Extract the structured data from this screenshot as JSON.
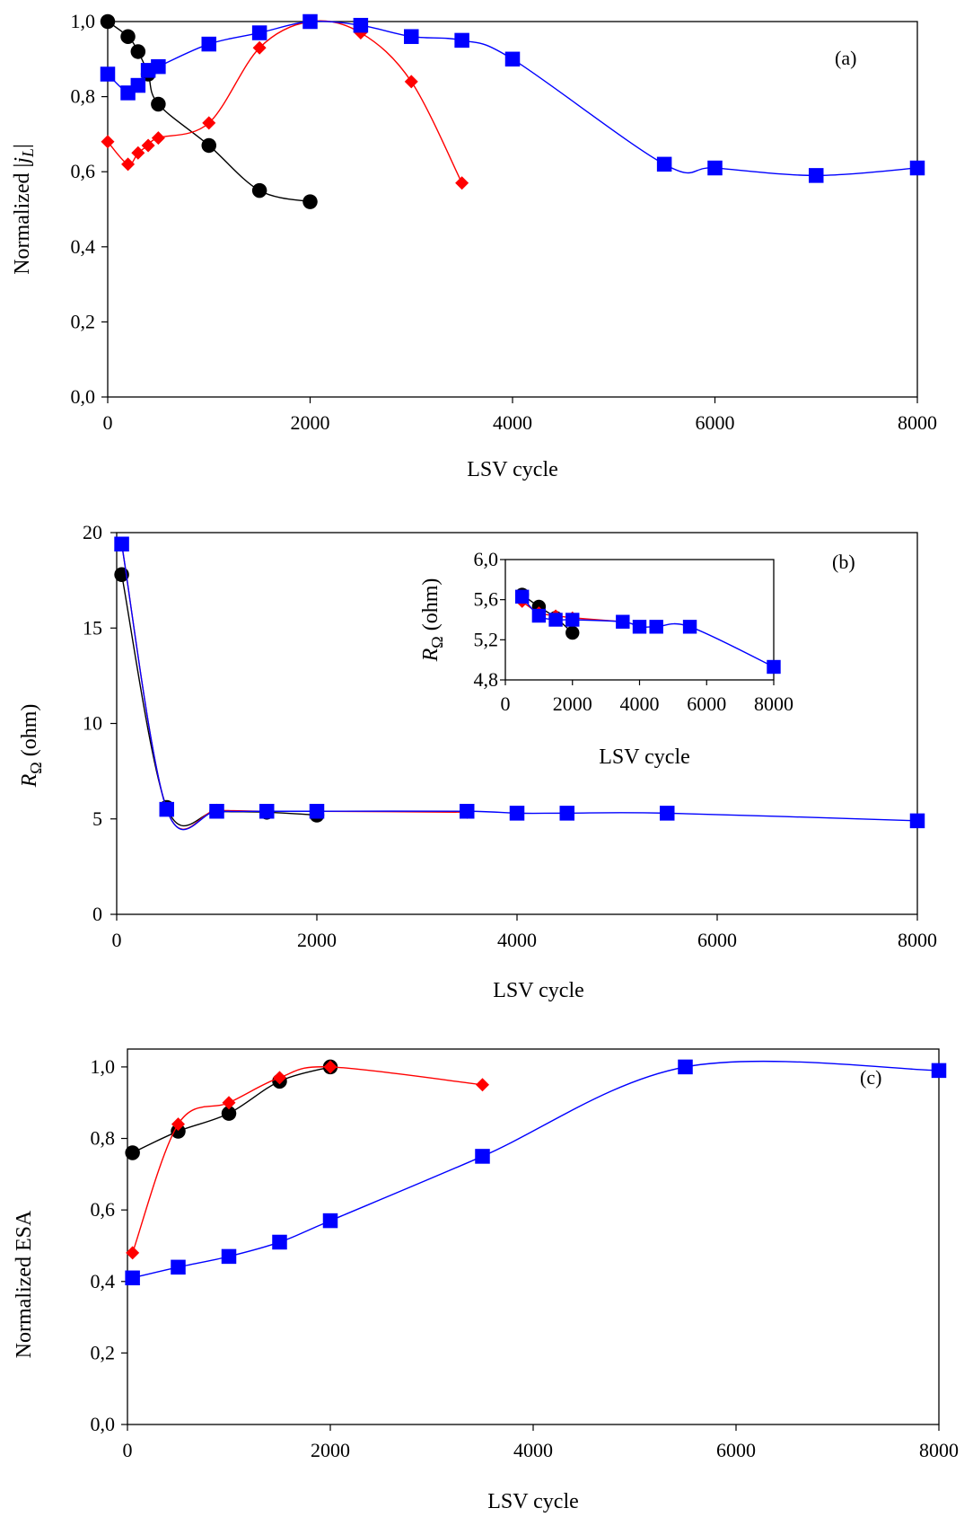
{
  "chart_data": [
    {
      "id": "a",
      "type": "line",
      "panel_label": "(a)",
      "xlabel": "LSV cycle",
      "ylabel": "Normalized |jL|",
      "xlim": [
        0,
        8000
      ],
      "ylim": [
        0,
        1
      ],
      "xticks": [
        0,
        2000,
        4000,
        6000,
        8000
      ],
      "xtick_labels": [
        "0",
        "2000",
        "4000",
        "6000",
        "8000"
      ],
      "yticks": [
        0,
        0.2,
        0.4,
        0.6,
        0.8,
        1.0
      ],
      "ytick_labels": [
        "0,0",
        "0,2",
        "0,4",
        "0,6",
        "0,8",
        "1,0"
      ],
      "grid": false,
      "legend": "none",
      "series": [
        {
          "color": "#000000",
          "marker": "circle",
          "x": [
            0,
            200,
            300,
            400,
            500,
            1000,
            1500,
            2000
          ],
          "y": [
            1.0,
            0.96,
            0.92,
            0.86,
            0.78,
            0.67,
            0.55,
            0.52
          ]
        },
        {
          "color": "#ff0000",
          "marker": "diamond",
          "x": [
            0,
            200,
            300,
            400,
            500,
            1000,
            1500,
            2000,
            2500,
            3000,
            3500
          ],
          "y": [
            0.68,
            0.62,
            0.65,
            0.67,
            0.69,
            0.73,
            0.93,
            1.0,
            0.97,
            0.84,
            0.57
          ]
        },
        {
          "color": "#0000ff",
          "marker": "square",
          "x": [
            0,
            200,
            300,
            400,
            500,
            1000,
            1500,
            2000,
            2500,
            3000,
            3500,
            4000,
            5500,
            6000,
            7000,
            8000
          ],
          "y": [
            0.86,
            0.81,
            0.83,
            0.87,
            0.88,
            0.94,
            0.97,
            1.0,
            0.99,
            0.96,
            0.95,
            0.9,
            0.62,
            0.61,
            0.59,
            0.61
          ]
        }
      ]
    },
    {
      "id": "b",
      "type": "line",
      "panel_label": "(b)",
      "xlabel": "LSV cycle",
      "ylabel": "RΩ (ohm)",
      "xlim": [
        0,
        8000
      ],
      "ylim": [
        0,
        20
      ],
      "xticks": [
        0,
        2000,
        4000,
        6000,
        8000
      ],
      "xtick_labels": [
        "0",
        "2000",
        "4000",
        "6000",
        "8000"
      ],
      "yticks": [
        0,
        5,
        10,
        15,
        20
      ],
      "ytick_labels": [
        "0",
        "5",
        "10",
        "15",
        "20"
      ],
      "grid": false,
      "legend": "none",
      "series": [
        {
          "color": "#000000",
          "marker": "circle",
          "x": [
            50,
            500,
            1000,
            1500,
            2000
          ],
          "y": [
            17.8,
            5.6,
            5.4,
            5.35,
            5.2
          ]
        },
        {
          "color": "#ff0000",
          "marker": "diamond",
          "x": [
            50,
            500,
            1000,
            1500,
            2000,
            3500
          ],
          "y": [
            19.4,
            5.5,
            5.45,
            5.4,
            5.4,
            5.35
          ]
        },
        {
          "color": "#0000ff",
          "marker": "square",
          "x": [
            50,
            500,
            1000,
            1500,
            2000,
            3500,
            4000,
            4500,
            5500,
            8000
          ],
          "y": [
            19.4,
            5.5,
            5.4,
            5.4,
            5.4,
            5.4,
            5.3,
            5.3,
            5.3,
            4.9
          ]
        }
      ],
      "inset": {
        "xlabel": "LSV cycle",
        "ylabel": "RΩ (ohm)",
        "xlim": [
          0,
          8000
        ],
        "ylim": [
          4.8,
          6.0
        ],
        "xticks": [
          0,
          2000,
          4000,
          6000,
          8000
        ],
        "xtick_labels": [
          "0",
          "2000",
          "4000",
          "6000",
          "8000"
        ],
        "yticks": [
          4.8,
          5.2,
          5.6,
          6.0
        ],
        "ytick_labels": [
          "4,8",
          "5,2",
          "5,6",
          "6,0"
        ],
        "series": [
          {
            "color": "#000000",
            "marker": "circle",
            "x": [
              500,
              1000,
              1500,
              2000
            ],
            "y": [
              5.65,
              5.53,
              5.42,
              5.27
            ]
          },
          {
            "color": "#ff0000",
            "marker": "diamond",
            "x": [
              500,
              1000,
              1500,
              2000,
              3500
            ],
            "y": [
              5.58,
              5.47,
              5.44,
              5.42,
              5.38
            ]
          },
          {
            "color": "#0000ff",
            "marker": "square",
            "x": [
              500,
              1000,
              1500,
              2000,
              3500,
              4000,
              4500,
              5500,
              8000
            ],
            "y": [
              5.63,
              5.44,
              5.4,
              5.4,
              5.38,
              5.33,
              5.33,
              5.33,
              4.93
            ]
          }
        ]
      }
    },
    {
      "id": "c",
      "type": "line",
      "panel_label": "(c)",
      "xlabel": "LSV cycle",
      "ylabel": "Normalized ESA",
      "xlim": [
        0,
        8000
      ],
      "ylim": [
        0,
        1.05
      ],
      "xticks": [
        0,
        2000,
        4000,
        6000,
        8000
      ],
      "xtick_labels": [
        "0",
        "2000",
        "4000",
        "6000",
        "8000"
      ],
      "yticks": [
        0,
        0.2,
        0.4,
        0.6,
        0.8,
        1.0
      ],
      "ytick_labels": [
        "0,0",
        "0,2",
        "0,4",
        "0,6",
        "0,8",
        "1,0"
      ],
      "grid": false,
      "legend": "none",
      "series": [
        {
          "color": "#000000",
          "marker": "circle",
          "x": [
            50,
            500,
            1000,
            1500,
            2000
          ],
          "y": [
            0.76,
            0.82,
            0.87,
            0.96,
            1.0
          ]
        },
        {
          "color": "#ff0000",
          "marker": "diamond",
          "x": [
            50,
            500,
            1000,
            1500,
            2000,
            3500
          ],
          "y": [
            0.48,
            0.84,
            0.9,
            0.97,
            1.0,
            0.95
          ]
        },
        {
          "color": "#0000ff",
          "marker": "square",
          "x": [
            50,
            500,
            1000,
            1500,
            2000,
            3500,
            5500,
            8000
          ],
          "y": [
            0.41,
            0.44,
            0.47,
            0.51,
            0.57,
            0.75,
            1.0,
            0.99
          ]
        }
      ]
    }
  ]
}
